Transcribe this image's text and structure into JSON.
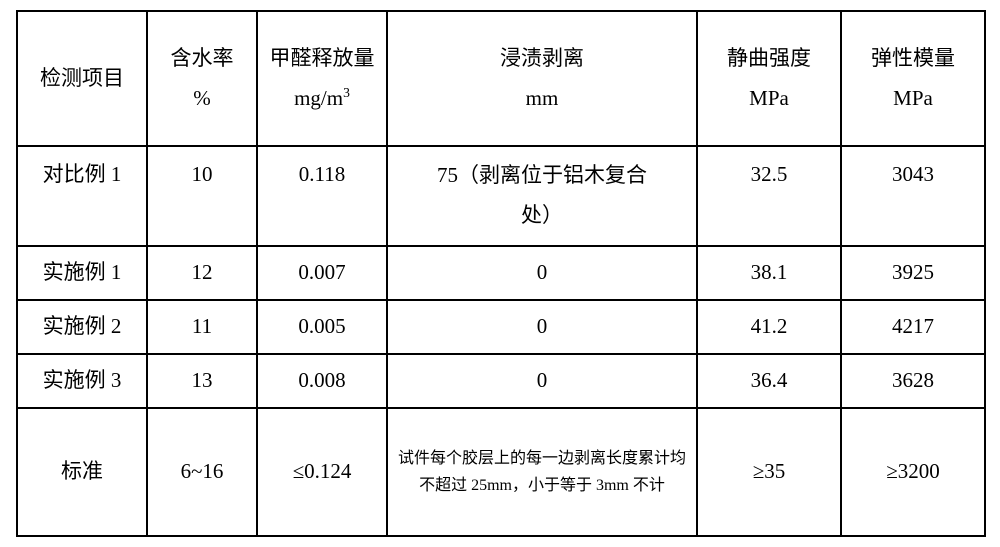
{
  "table": {
    "headers": [
      {
        "l1": "检测项目",
        "l2": ""
      },
      {
        "l1": "含水率",
        "l2": "%"
      },
      {
        "l1": "甲醛释放量",
        "l2": "mg/m",
        "sup": "3"
      },
      {
        "l1": "浸渍剥离",
        "l2": "mm"
      },
      {
        "l1": "静曲强度",
        "l2": "MPa"
      },
      {
        "l1": "弹性模量",
        "l2": "MPa"
      }
    ],
    "rows": [
      {
        "label": "对比例 1",
        "moisture": "10",
        "formaldehyde": "0.118",
        "soak_l1": "75（剥离位于铝木复合",
        "soak_l2": "处）",
        "bending": "32.5",
        "modulus": "3043",
        "row_class": "row-body",
        "soak_class": ""
      },
      {
        "label": "实施例 1",
        "moisture": "12",
        "formaldehyde": "0.007",
        "soak_l1": "0",
        "soak_l2": "",
        "bending": "38.1",
        "modulus": "3925",
        "row_class": "row-thin",
        "soak_class": ""
      },
      {
        "label": "实施例 2",
        "moisture": "11",
        "formaldehyde": "0.005",
        "soak_l1": "0",
        "soak_l2": "",
        "bending": "41.2",
        "modulus": "4217",
        "row_class": "row-thin",
        "soak_class": ""
      },
      {
        "label": "实施例 3",
        "moisture": "13",
        "formaldehyde": "0.008",
        "soak_l1": "0",
        "soak_l2": "",
        "bending": "36.4",
        "modulus": "3628",
        "row_class": "row-thin",
        "soak_class": ""
      },
      {
        "label": "标准",
        "moisture": "6~16",
        "formaldehyde": "≤0.124",
        "soak_l1": "试件每个胶层上的每一边剥离长度累计均不超过 25mm，小于等于 3mm 不计",
        "soak_l2": "",
        "bending": "≥35",
        "modulus": "≥3200",
        "row_class": "row-std",
        "soak_class": "small"
      }
    ]
  }
}
